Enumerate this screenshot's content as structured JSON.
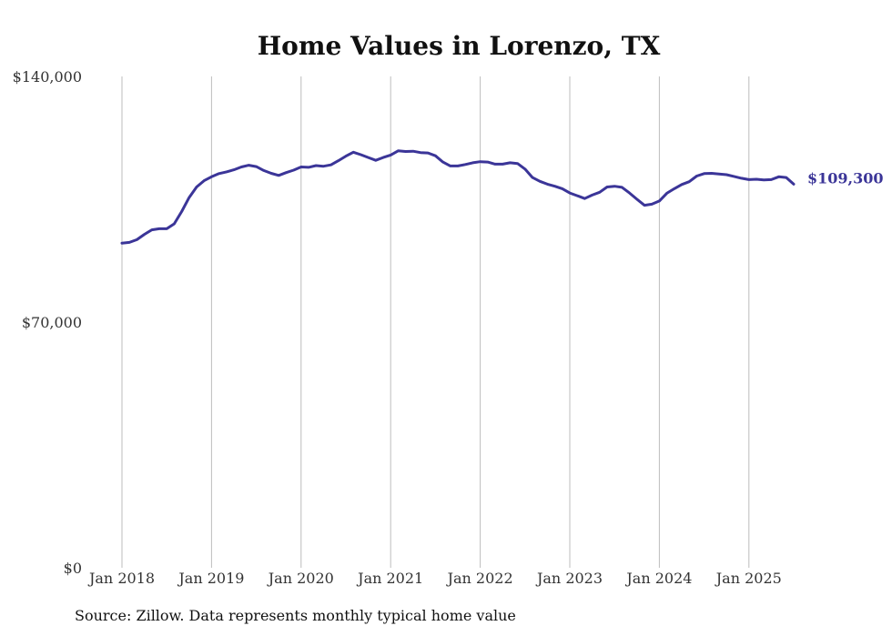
{
  "chart_data": {
    "type": "line",
    "title": "Home Values in Lorenzo, TX",
    "xlabel": "",
    "ylabel": "",
    "ylim": [
      0,
      140000
    ],
    "y_ticks": [
      {
        "value": 0,
        "label": "$0"
      },
      {
        "value": 70000,
        "label": "$70,000"
      },
      {
        "value": 140000,
        "label": "$140,000"
      }
    ],
    "x_ticks": [
      {
        "value": "2018-01",
        "label": "Jan 2018"
      },
      {
        "value": "2019-01",
        "label": "Jan 2019"
      },
      {
        "value": "2020-01",
        "label": "Jan 2020"
      },
      {
        "value": "2021-01",
        "label": "Jan 2021"
      },
      {
        "value": "2022-01",
        "label": "Jan 2022"
      },
      {
        "value": "2023-01",
        "label": "Jan 2023"
      },
      {
        "value": "2024-01",
        "label": "Jan 2024"
      },
      {
        "value": "2025-01",
        "label": "Jan 2025"
      }
    ],
    "grid": "vertical",
    "line_color": "#3b3598",
    "series": [
      {
        "x": [
          "2018-01",
          "2018-02",
          "2018-03",
          "2018-04",
          "2018-05",
          "2018-06",
          "2018-07",
          "2018-08",
          "2018-09",
          "2018-10",
          "2018-11",
          "2018-12",
          "2019-01",
          "2019-02",
          "2019-03",
          "2019-04",
          "2019-05",
          "2019-06",
          "2019-07",
          "2019-08",
          "2019-09",
          "2019-10",
          "2019-11",
          "2019-12",
          "2020-01",
          "2020-02",
          "2020-03",
          "2020-04",
          "2020-05",
          "2020-06",
          "2020-07",
          "2020-08",
          "2020-09",
          "2020-10",
          "2020-11",
          "2020-12",
          "2021-01",
          "2021-02",
          "2021-03",
          "2021-04",
          "2021-05",
          "2021-06",
          "2021-07",
          "2021-08",
          "2021-09",
          "2021-10",
          "2021-11",
          "2021-12",
          "2022-01",
          "2022-02",
          "2022-03",
          "2022-04",
          "2022-05",
          "2022-06",
          "2022-07",
          "2022-08",
          "2022-09",
          "2022-10",
          "2022-11",
          "2022-12",
          "2023-01",
          "2023-02",
          "2023-03",
          "2023-04",
          "2023-05",
          "2023-06",
          "2023-07",
          "2023-08",
          "2023-09",
          "2023-10",
          "2023-11",
          "2023-12",
          "2024-01",
          "2024-02",
          "2024-03",
          "2024-04",
          "2024-05",
          "2024-06",
          "2024-07",
          "2024-08",
          "2024-09",
          "2024-10",
          "2024-11",
          "2024-12",
          "2025-01",
          "2025-02",
          "2025-03",
          "2025-04",
          "2025-05",
          "2025-06",
          "2025-07"
        ],
        "values": [
          92500,
          92700,
          93500,
          95000,
          96300,
          96600,
          96600,
          98000,
          101500,
          105500,
          108500,
          110300,
          111400,
          112300,
          112800,
          113400,
          114200,
          114700,
          114300,
          113200,
          112400,
          111800,
          112600,
          113300,
          114200,
          114100,
          114600,
          114400,
          114800,
          116000,
          117300,
          118400,
          117700,
          116900,
          116100,
          116900,
          117600,
          118800,
          118600,
          118700,
          118300,
          118200,
          117400,
          115600,
          114500,
          114500,
          114900,
          115400,
          115700,
          115600,
          115000,
          115000,
          115400,
          115200,
          113600,
          111200,
          110100,
          109300,
          108700,
          108000,
          106800,
          106000,
          105200,
          106200,
          107000,
          108500,
          108700,
          108400,
          106800,
          105000,
          103300,
          103600,
          104500,
          106700,
          108000,
          109200,
          110000,
          111600,
          112300,
          112400,
          112200,
          112000,
          111500,
          111000,
          110600,
          110700,
          110500,
          110600,
          111400,
          111200,
          109300
        ],
        "end_label": "$109,300"
      }
    ]
  },
  "footer": {
    "source": "Source: Zillow. Data represents monthly typical home value"
  }
}
